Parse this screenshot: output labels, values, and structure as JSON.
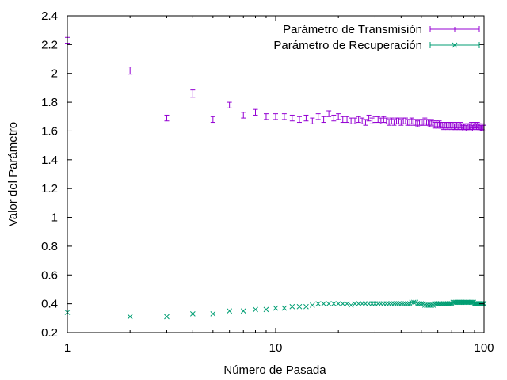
{
  "chart_data": {
    "type": "scatter",
    "xlabel": "Número de Pasada",
    "ylabel": "Valor del Parámetro",
    "x_scale": "log",
    "xlim": [
      1,
      100
    ],
    "ylim": [
      0.2,
      2.4
    ],
    "x_ticks": [
      1,
      10,
      100
    ],
    "x_tick_labels": [
      "1",
      "10",
      "100"
    ],
    "y_ticks": [
      0.2,
      0.4,
      0.6,
      0.8,
      1.0,
      1.2,
      1.4,
      1.6,
      1.8,
      2.0,
      2.2,
      2.4
    ],
    "y_tick_labels": [
      "0.2",
      "0.4",
      "0.6",
      "0.8",
      "1",
      "1.2",
      "1.4",
      "1.6",
      "1.8",
      "2",
      "2.2",
      "2.4"
    ],
    "grid": false,
    "legend_position": "top-right",
    "series": [
      {
        "name": "Parámetro de Transmisión",
        "color": "#9400d3",
        "marker": "errorbar",
        "x": [
          1,
          2,
          3,
          4,
          5,
          6,
          7,
          8,
          9,
          10,
          11,
          12,
          13,
          14,
          15,
          16,
          17,
          18,
          19,
          20,
          21,
          22,
          23,
          24,
          25,
          26,
          27,
          28,
          29,
          30,
          31,
          32,
          33,
          34,
          35,
          36,
          37,
          38,
          39,
          40,
          41,
          42,
          43,
          44,
          45,
          46,
          47,
          48,
          49,
          50,
          51,
          52,
          53,
          54,
          55,
          56,
          57,
          58,
          59,
          60,
          61,
          62,
          63,
          64,
          65,
          66,
          67,
          68,
          69,
          70,
          71,
          72,
          73,
          74,
          75,
          76,
          77,
          78,
          79,
          80,
          81,
          82,
          83,
          84,
          85,
          86,
          87,
          88,
          89,
          90,
          91,
          92,
          93,
          94,
          95,
          96,
          97,
          98,
          99,
          100
        ],
        "y": [
          2.23,
          2.02,
          1.69,
          1.86,
          1.68,
          1.78,
          1.71,
          1.73,
          1.7,
          1.7,
          1.7,
          1.69,
          1.68,
          1.69,
          1.67,
          1.7,
          1.68,
          1.72,
          1.69,
          1.7,
          1.68,
          1.68,
          1.67,
          1.67,
          1.68,
          1.67,
          1.66,
          1.69,
          1.67,
          1.68,
          1.68,
          1.67,
          1.68,
          1.67,
          1.66,
          1.67,
          1.66,
          1.67,
          1.67,
          1.66,
          1.67,
          1.67,
          1.66,
          1.66,
          1.67,
          1.66,
          1.66,
          1.65,
          1.66,
          1.66,
          1.66,
          1.67,
          1.66,
          1.66,
          1.65,
          1.66,
          1.65,
          1.64,
          1.65,
          1.64,
          1.65,
          1.64,
          1.64,
          1.63,
          1.64,
          1.64,
          1.63,
          1.64,
          1.64,
          1.63,
          1.64,
          1.63,
          1.63,
          1.64,
          1.63,
          1.63,
          1.64,
          1.63,
          1.62,
          1.63,
          1.63,
          1.62,
          1.63,
          1.63,
          1.63,
          1.63,
          1.64,
          1.62,
          1.63,
          1.64,
          1.64,
          1.63,
          1.64,
          1.63,
          1.63,
          1.62,
          1.62,
          1.63,
          1.62,
          1.62
        ],
        "yerr": [
          0.02,
          0.025,
          0.02,
          0.025,
          0.02,
          0.02,
          0.02,
          0.02,
          0.02,
          0.02,
          0.02,
          0.02,
          0.02,
          0.02,
          0.02,
          0.02,
          0.02,
          0.02,
          0.02,
          0.02,
          0.02,
          0.02,
          0.02,
          0.02,
          0.02,
          0.02,
          0.02,
          0.02,
          0.02,
          0.02,
          0.02,
          0.02,
          0.02,
          0.02,
          0.02,
          0.02,
          0.02,
          0.02,
          0.02,
          0.02,
          0.02,
          0.02,
          0.02,
          0.02,
          0.02,
          0.02,
          0.02,
          0.02,
          0.02,
          0.02,
          0.02,
          0.02,
          0.02,
          0.02,
          0.02,
          0.02,
          0.02,
          0.02,
          0.02,
          0.02,
          0.02,
          0.02,
          0.02,
          0.02,
          0.02,
          0.02,
          0.02,
          0.02,
          0.02,
          0.02,
          0.02,
          0.02,
          0.02,
          0.02,
          0.02,
          0.02,
          0.02,
          0.02,
          0.02,
          0.02,
          0.02,
          0.02,
          0.02,
          0.02,
          0.02,
          0.02,
          0.02,
          0.02,
          0.02,
          0.02,
          0.02,
          0.02,
          0.02,
          0.02,
          0.02,
          0.02,
          0.02,
          0.02,
          0.02,
          0.02
        ]
      },
      {
        "name": "Parámetro de Recuperación",
        "color": "#009e73",
        "marker": "cross",
        "x": [
          1,
          2,
          3,
          4,
          5,
          6,
          7,
          8,
          9,
          10,
          11,
          12,
          13,
          14,
          15,
          16,
          17,
          18,
          19,
          20,
          21,
          22,
          23,
          24,
          25,
          26,
          27,
          28,
          29,
          30,
          31,
          32,
          33,
          34,
          35,
          36,
          37,
          38,
          39,
          40,
          41,
          42,
          43,
          44,
          45,
          46,
          47,
          48,
          49,
          50,
          51,
          52,
          53,
          54,
          55,
          56,
          57,
          58,
          59,
          60,
          61,
          62,
          63,
          64,
          65,
          66,
          67,
          68,
          69,
          70,
          71,
          72,
          73,
          74,
          75,
          76,
          77,
          78,
          79,
          80,
          81,
          82,
          83,
          84,
          85,
          86,
          87,
          88,
          89,
          90,
          91,
          92,
          93,
          94,
          95,
          96,
          97,
          98,
          99,
          100
        ],
        "y": [
          0.34,
          0.31,
          0.31,
          0.33,
          0.33,
          0.35,
          0.35,
          0.36,
          0.36,
          0.37,
          0.37,
          0.38,
          0.38,
          0.38,
          0.39,
          0.4,
          0.4,
          0.4,
          0.4,
          0.4,
          0.4,
          0.4,
          0.39,
          0.4,
          0.4,
          0.4,
          0.4,
          0.4,
          0.4,
          0.4,
          0.4,
          0.4,
          0.4,
          0.4,
          0.4,
          0.4,
          0.4,
          0.4,
          0.4,
          0.4,
          0.4,
          0.4,
          0.4,
          0.4,
          0.41,
          0.41,
          0.41,
          0.4,
          0.4,
          0.4,
          0.4,
          0.39,
          0.39,
          0.39,
          0.39,
          0.39,
          0.39,
          0.4,
          0.4,
          0.4,
          0.4,
          0.4,
          0.4,
          0.4,
          0.4,
          0.4,
          0.4,
          0.4,
          0.4,
          0.4,
          0.41,
          0.41,
          0.41,
          0.41,
          0.41,
          0.41,
          0.41,
          0.41,
          0.41,
          0.41,
          0.41,
          0.41,
          0.41,
          0.41,
          0.41,
          0.41,
          0.41,
          0.41,
          0.41,
          0.4,
          0.4,
          0.4,
          0.4,
          0.4,
          0.4,
          0.4,
          0.4,
          0.4,
          0.4,
          0.4
        ],
        "yerr": []
      }
    ]
  }
}
